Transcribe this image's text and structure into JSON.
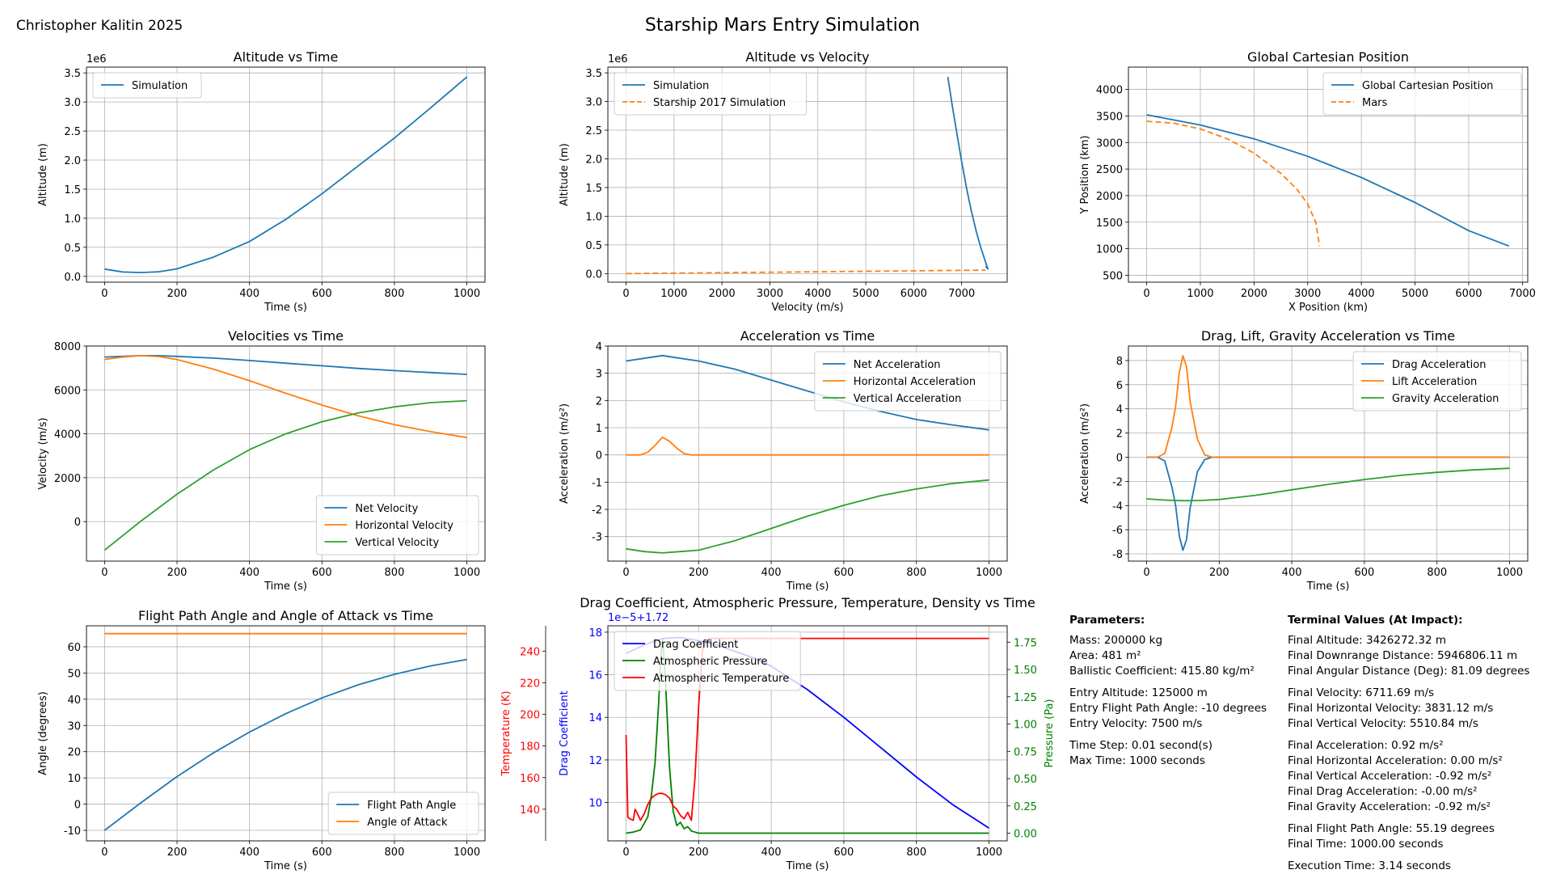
{
  "header": {
    "author": "Christopher Kalitin 2025",
    "title": "Starship Mars Entry Simulation"
  },
  "chart_data": [
    {
      "id": "p1",
      "type": "line",
      "title": "Altitude vs Time",
      "xlabel": "Time (s)",
      "ylabel": "Altitude (m)",
      "xlim": [
        -50,
        1050
      ],
      "ylim": [
        -0.1,
        3.6
      ],
      "offset_text": "1e6",
      "xticks": [
        0,
        200,
        400,
        600,
        800,
        1000
      ],
      "yticks": [
        0.0,
        0.5,
        1.0,
        1.5,
        2.0,
        2.5,
        3.0,
        3.5
      ],
      "ytick_decimals": 1,
      "grid": true,
      "legend": "upper left",
      "series": [
        {
          "name": "Simulation",
          "color": "#1f77b4",
          "dashed": false,
          "x": [
            0,
            50,
            100,
            150,
            200,
            300,
            400,
            500,
            600,
            700,
            800,
            900,
            1000
          ],
          "y": [
            0.125,
            0.075,
            0.065,
            0.08,
            0.13,
            0.33,
            0.6,
            0.98,
            1.42,
            1.9,
            2.38,
            2.9,
            3.43
          ]
        }
      ]
    },
    {
      "id": "p2",
      "type": "line",
      "title": "Altitude vs Velocity",
      "xlabel": "Velocity (m/s)",
      "ylabel": "Altitude (m)",
      "xlim": [
        -380,
        7950
      ],
      "ylim": [
        -0.15,
        3.6
      ],
      "offset_text": "1e6",
      "xticks": [
        0,
        1000,
        2000,
        3000,
        4000,
        5000,
        6000,
        7000
      ],
      "yticks": [
        0.0,
        0.5,
        1.0,
        1.5,
        2.0,
        2.5,
        3.0,
        3.5
      ],
      "ytick_decimals": 1,
      "grid": true,
      "legend": "upper left",
      "series": [
        {
          "name": "Simulation",
          "color": "#1f77b4",
          "dashed": false,
          "x": [
            6712,
            6800,
            6900,
            7000,
            7100,
            7200,
            7300,
            7400,
            7480,
            7530,
            7550,
            7500
          ],
          "y": [
            3.43,
            2.95,
            2.45,
            1.95,
            1.5,
            1.1,
            0.75,
            0.45,
            0.25,
            0.12,
            0.08,
            0.125
          ]
        },
        {
          "name": "Starship 2017 Simulation",
          "color": "#ff7f0e",
          "dashed": true,
          "x": [
            0,
            7500
          ],
          "y": [
            0.0,
            0.06
          ]
        }
      ]
    },
    {
      "id": "p3",
      "type": "line",
      "title": "Global Cartesian Position",
      "xlabel": "X Position (km)",
      "ylabel": "Y Position (km)",
      "xlim": [
        -340,
        7100
      ],
      "ylim": [
        370,
        4420
      ],
      "xticks": [
        0,
        1000,
        2000,
        3000,
        4000,
        5000,
        6000,
        7000
      ],
      "yticks": [
        500,
        1000,
        1500,
        2000,
        2500,
        3000,
        3500,
        4000
      ],
      "ytick_decimals": 0,
      "grid": true,
      "legend": "upper right",
      "series": [
        {
          "name": "Global Cartesian Position",
          "color": "#1f77b4",
          "dashed": false,
          "x": [
            0,
            1000,
            2000,
            3000,
            4000,
            5000,
            6000,
            6750
          ],
          "y": [
            3521,
            3330,
            3070,
            2740,
            2340,
            1870,
            1340,
            1050
          ]
        },
        {
          "name": "Mars",
          "color": "#ff7f0e",
          "dashed": true,
          "x": [
            0,
            500,
            1000,
            1500,
            2000,
            2500,
            2800,
            3000,
            3150,
            3220
          ],
          "y": [
            3400,
            3365,
            3255,
            3070,
            2800,
            2420,
            2120,
            1840,
            1500,
            1050
          ]
        }
      ]
    },
    {
      "id": "p4",
      "type": "line",
      "title": "Velocities vs Time",
      "xlabel": "Time (s)",
      "ylabel": "Velocity (m/s)",
      "xlim": [
        -50,
        1050
      ],
      "ylim": [
        -1800,
        8000
      ],
      "xticks": [
        0,
        200,
        400,
        600,
        800,
        1000
      ],
      "yticks": [
        0,
        2000,
        4000,
        6000,
        8000
      ],
      "ytick_decimals": 0,
      "grid": true,
      "legend": "lower right",
      "series": [
        {
          "name": "Net Velocity",
          "color": "#1f77b4",
          "dashed": false,
          "x": [
            0,
            50,
            100,
            150,
            200,
            300,
            400,
            500,
            600,
            700,
            800,
            900,
            1000
          ],
          "y": [
            7500,
            7530,
            7560,
            7560,
            7530,
            7450,
            7340,
            7220,
            7100,
            6980,
            6880,
            6790,
            6712
          ]
        },
        {
          "name": "Horizontal Velocity",
          "color": "#ff7f0e",
          "dashed": false,
          "x": [
            0,
            50,
            100,
            150,
            200,
            300,
            400,
            500,
            600,
            700,
            800,
            900,
            1000
          ],
          "y": [
            7390,
            7500,
            7560,
            7520,
            7380,
            6950,
            6420,
            5850,
            5310,
            4820,
            4420,
            4100,
            3831
          ]
        },
        {
          "name": "Vertical Velocity",
          "color": "#2ca02c",
          "dashed": false,
          "x": [
            0,
            100,
            200,
            300,
            400,
            500,
            600,
            700,
            800,
            900,
            1000
          ],
          "y": [
            -1300,
            20,
            1250,
            2350,
            3280,
            4000,
            4550,
            4950,
            5230,
            5420,
            5511
          ]
        }
      ]
    },
    {
      "id": "p5",
      "type": "line",
      "title": "Acceleration vs Time",
      "xlabel": "Time (s)",
      "ylabel": "Acceleration (m/s²)",
      "xlim": [
        -50,
        1050
      ],
      "ylim": [
        -3.9,
        4.0
      ],
      "xticks": [
        0,
        200,
        400,
        600,
        800,
        1000
      ],
      "yticks": [
        -3,
        -2,
        -1,
        0,
        1,
        2,
        3,
        4
      ],
      "ytick_decimals": 0,
      "grid": true,
      "legend": "upper right",
      "series": [
        {
          "name": "Net Acceleration",
          "color": "#1f77b4",
          "dashed": false,
          "x": [
            0,
            50,
            100,
            150,
            200,
            300,
            400,
            500,
            600,
            700,
            800,
            900,
            1000
          ],
          "y": [
            3.45,
            3.55,
            3.65,
            3.55,
            3.45,
            3.15,
            2.75,
            2.35,
            1.95,
            1.6,
            1.3,
            1.1,
            0.92
          ]
        },
        {
          "name": "Horizontal Acceleration",
          "color": "#ff7f0e",
          "dashed": false,
          "x": [
            0,
            40,
            60,
            80,
            100,
            120,
            140,
            160,
            180,
            1000
          ],
          "y": [
            0,
            0,
            0.1,
            0.35,
            0.65,
            0.5,
            0.25,
            0.05,
            0,
            0
          ]
        },
        {
          "name": "Vertical Acceleration",
          "color": "#2ca02c",
          "dashed": false,
          "x": [
            0,
            50,
            100,
            150,
            200,
            300,
            400,
            500,
            600,
            700,
            800,
            900,
            1000
          ],
          "y": [
            -3.45,
            -3.55,
            -3.6,
            -3.55,
            -3.5,
            -3.15,
            -2.7,
            -2.25,
            -1.85,
            -1.5,
            -1.25,
            -1.05,
            -0.92
          ]
        }
      ]
    },
    {
      "id": "p6",
      "type": "line",
      "title": "Drag, Lift, Gravity Acceleration vs Time",
      "xlabel": "Time (s)",
      "ylabel": "Acceleration (m/s²)",
      "xlim": [
        -50,
        1050
      ],
      "ylim": [
        -8.6,
        9.2
      ],
      "xticks": [
        0,
        200,
        400,
        600,
        800,
        1000
      ],
      "yticks": [
        -8,
        -6,
        -4,
        -2,
        0,
        2,
        4,
        6,
        8
      ],
      "ytick_decimals": 0,
      "grid": true,
      "legend": "upper right",
      "series": [
        {
          "name": "Drag Acceleration",
          "color": "#1f77b4",
          "dashed": false,
          "x": [
            0,
            30,
            50,
            70,
            80,
            90,
            100,
            110,
            120,
            140,
            160,
            180,
            1000
          ],
          "y": [
            0,
            0,
            -0.3,
            -2.5,
            -4,
            -6.5,
            -7.7,
            -6.8,
            -4.2,
            -1.2,
            -0.2,
            0,
            0
          ]
        },
        {
          "name": "Lift Acceleration",
          "color": "#ff7f0e",
          "dashed": false,
          "x": [
            0,
            30,
            50,
            70,
            80,
            90,
            100,
            110,
            120,
            140,
            160,
            180,
            1000
          ],
          "y": [
            0,
            0,
            0.3,
            2.5,
            4.2,
            7.0,
            8.4,
            7.5,
            4.6,
            1.5,
            0.2,
            0,
            0
          ]
        },
        {
          "name": "Gravity Acceleration",
          "color": "#2ca02c",
          "dashed": false,
          "x": [
            0,
            50,
            100,
            150,
            200,
            300,
            400,
            500,
            600,
            700,
            800,
            900,
            1000
          ],
          "y": [
            -3.45,
            -3.55,
            -3.6,
            -3.58,
            -3.5,
            -3.15,
            -2.7,
            -2.25,
            -1.85,
            -1.5,
            -1.25,
            -1.05,
            -0.92
          ]
        }
      ]
    },
    {
      "id": "p7",
      "type": "line",
      "title": "Flight Path Angle and Angle of Attack vs Time",
      "xlabel": "Time (s)",
      "ylabel": "Angle (degrees)",
      "xlim": [
        -50,
        1050
      ],
      "ylim": [
        -14,
        68
      ],
      "xticks": [
        0,
        200,
        400,
        600,
        800,
        1000
      ],
      "yticks": [
        -10,
        0,
        10,
        20,
        30,
        40,
        50,
        60
      ],
      "ytick_decimals": 0,
      "grid": true,
      "legend": "lower right",
      "series": [
        {
          "name": "Flight Path Angle",
          "color": "#1f77b4",
          "dashed": false,
          "x": [
            0,
            100,
            200,
            300,
            400,
            500,
            600,
            700,
            800,
            900,
            1000
          ],
          "y": [
            -10,
            0.5,
            10.5,
            19.5,
            27.5,
            34.5,
            40.5,
            45.5,
            49.5,
            52.7,
            55.19
          ]
        },
        {
          "name": "Angle of Attack",
          "color": "#ff7f0e",
          "dashed": false,
          "x": [
            0,
            1000
          ],
          "y": [
            65,
            65
          ]
        }
      ]
    },
    {
      "id": "p8",
      "type": "line",
      "title": "Drag Coefficient, Atmospheric Pressure, Temperature, Density vs Time",
      "xlabel": "Time (s)",
      "xlim": [
        -50,
        1050
      ],
      "xticks": [
        0,
        200,
        400,
        600,
        800,
        1000
      ],
      "grid": true,
      "legend": "upper left",
      "left_axis": {
        "label": "Drag Coefficient",
        "color": "#0000ff",
        "ylim": [
          8.2,
          18.3
        ],
        "ticks": [
          10,
          12,
          14,
          16,
          18
        ],
        "offset_text": "1e−5+1.72"
      },
      "right_axis": {
        "label": "Pressure (Pa)",
        "color": "#008000",
        "ylim": [
          -0.07,
          1.9
        ],
        "ticks": [
          0.0,
          0.25,
          0.5,
          0.75,
          1.0,
          1.25,
          1.5,
          1.75
        ],
        "tick_decimals": 2
      },
      "far_left_axis": {
        "label": "Temperature (K)",
        "color": "#ff0000",
        "ylim": [
          120,
          256
        ],
        "ticks": [
          140,
          160,
          180,
          200,
          220,
          240
        ]
      },
      "series": [
        {
          "name": "Drag Coefficient",
          "color": "#0000ff",
          "axis": "left",
          "x": [
            0,
            50,
            100,
            150,
            200,
            250,
            300,
            350,
            400,
            500,
            600,
            700,
            800,
            900,
            1000
          ],
          "y": [
            17.0,
            17.4,
            17.7,
            17.75,
            17.6,
            17.4,
            17.1,
            16.8,
            16.4,
            15.3,
            14.0,
            12.6,
            11.2,
            9.9,
            8.8
          ]
        },
        {
          "name": "Atmospheric Pressure",
          "color": "#008000",
          "axis": "right",
          "x": [
            0,
            20,
            40,
            60,
            70,
            80,
            90,
            95,
            100,
            105,
            110,
            120,
            130,
            140,
            150,
            160,
            170,
            180,
            190,
            200,
            1000
          ],
          "y": [
            0,
            0.01,
            0.03,
            0.15,
            0.35,
            0.65,
            1.2,
            1.55,
            1.78,
            1.6,
            1.3,
            0.6,
            0.2,
            0.07,
            0.1,
            0.04,
            0.06,
            0.02,
            0.01,
            0,
            0
          ]
        },
        {
          "name": "Atmospheric Temperature",
          "color": "#ff0000",
          "axis": "far_left",
          "x": [
            0,
            5,
            10,
            20,
            25,
            30,
            40,
            50,
            60,
            70,
            80,
            90,
            100,
            110,
            120,
            130,
            140,
            150,
            160,
            170,
            180,
            190,
            200,
            210,
            220,
            230,
            240,
            260,
            1000
          ],
          "y": [
            187,
            135,
            134,
            133,
            140,
            138,
            133,
            137,
            143,
            147,
            149,
            150,
            150,
            149,
            147,
            142,
            140,
            136,
            134,
            138,
            133,
            160,
            205,
            240,
            246,
            248,
            248,
            248,
            248
          ]
        }
      ]
    }
  ],
  "parameters": {
    "heading": "Parameters:",
    "groups": [
      [
        "Mass: 200000 kg",
        "Area: 481 m²",
        "Ballistic Coefficient: 415.80 kg/m²"
      ],
      [
        "Entry Altitude: 125000 m",
        "Entry Flight Path Angle: -10 degrees",
        "Entry Velocity: 7500 m/s"
      ],
      [
        "Time Step: 0.01 second(s)",
        "Max Time: 1000 seconds"
      ]
    ]
  },
  "terminal": {
    "heading": "Terminal Values (At Impact):",
    "groups": [
      [
        "Final Altitude: 3426272.32 m",
        "Final Downrange Distance: 5946806.11 m",
        "Final Angular Distance (Deg): 81.09 degrees"
      ],
      [
        "Final Velocity: 6711.69 m/s",
        "Final Horizontal Velocity: 3831.12 m/s",
        "Final Vertical Velocity: 5510.84 m/s"
      ],
      [
        "Final Acceleration: 0.92 m/s²",
        "Final Horizontal Acceleration: 0.00 m/s²",
        "Final Vertical Acceleration: -0.92 m/s²",
        "Final Drag Acceleration: -0.00 m/s²",
        "Final Gravity Acceleration: -0.92 m/s²"
      ],
      [
        "Final Flight Path Angle: 55.19 degrees",
        "Final Time: 1000.00 seconds"
      ],
      [
        "Execution Time: 3.14 seconds"
      ]
    ]
  }
}
